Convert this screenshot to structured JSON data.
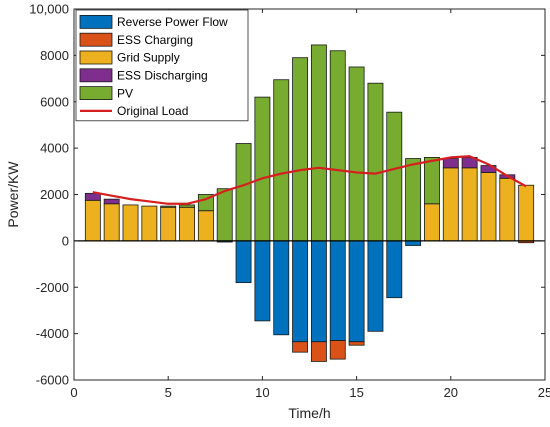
{
  "chart_data": {
    "type": "bar",
    "stacked": true,
    "xlabel": "Time/h",
    "ylabel": "Power/KW",
    "xlim": [
      0,
      25
    ],
    "ylim": [
      -6000,
      10000
    ],
    "xticks": [
      0,
      5,
      10,
      15,
      20,
      25
    ],
    "yticks": [
      -6000,
      -4000,
      -2000,
      0,
      2000,
      4000,
      6000,
      8000,
      10000
    ],
    "ytick_labels": [
      "-6000",
      "-4000",
      "-2000",
      "0",
      "2000",
      "4000",
      "6000",
      "8000",
      "10,000"
    ],
    "grid": false,
    "legend_position": "top-left",
    "x": [
      1,
      2,
      3,
      4,
      5,
      6,
      7,
      8,
      9,
      10,
      11,
      12,
      13,
      14,
      15,
      16,
      17,
      18,
      19,
      20,
      21,
      22,
      23,
      24
    ],
    "series": [
      {
        "name": "Reverse Power Flow",
        "color": "#0072BD",
        "values": [
          0,
          0,
          0,
          0,
          0,
          0,
          0,
          -50,
          -1800,
          -3450,
          -4050,
          -4350,
          -4350,
          -4300,
          -4350,
          -3900,
          -2450,
          -200,
          0,
          0,
          0,
          0,
          0,
          0
        ]
      },
      {
        "name": "ESS Charging",
        "color": "#D95319",
        "values": [
          0,
          0,
          0,
          0,
          0,
          0,
          0,
          0,
          0,
          0,
          0,
          -450,
          -850,
          -800,
          -150,
          0,
          0,
          0,
          0,
          0,
          0,
          0,
          0,
          -80
        ]
      },
      {
        "name": "Grid Supply",
        "color": "#EDB120",
        "values": [
          1750,
          1600,
          1550,
          1500,
          1450,
          1450,
          1300,
          0,
          0,
          0,
          0,
          0,
          0,
          0,
          0,
          0,
          0,
          0,
          1600,
          3150,
          3150,
          2950,
          2700,
          2400
        ]
      },
      {
        "name": "ESS Discharging",
        "color": "#7E2F8E",
        "values": [
          300,
          200,
          0,
          0,
          0,
          0,
          0,
          0,
          0,
          0,
          0,
          0,
          0,
          0,
          0,
          0,
          0,
          0,
          0,
          400,
          450,
          300,
          150,
          0
        ]
      },
      {
        "name": "PV",
        "color": "#77AC30",
        "values": [
          0,
          0,
          0,
          0,
          50,
          100,
          700,
          2250,
          4200,
          6200,
          6950,
          7900,
          8450,
          8200,
          7500,
          6800,
          5550,
          3550,
          2000,
          0,
          0,
          0,
          0,
          0
        ]
      }
    ],
    "lines": [
      {
        "name": "Original Load",
        "color": "#D62020",
        "values": [
          2100,
          1950,
          1800,
          1700,
          1600,
          1600,
          1800,
          2150,
          2400,
          2700,
          2900,
          3050,
          3150,
          3050,
          2950,
          2900,
          3100,
          3300,
          3450,
          3600,
          3650,
          3300,
          2800,
          2350
        ]
      }
    ]
  }
}
